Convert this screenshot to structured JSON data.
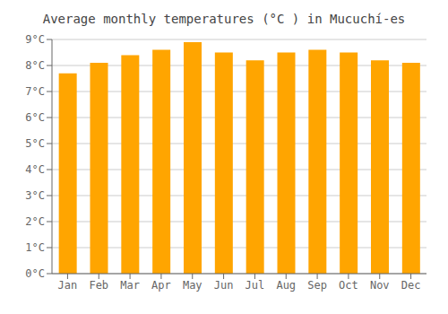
{
  "chart_data": {
    "type": "bar",
    "title": "Average monthly temperatures (°C ) in Mucuchí-es",
    "categories": [
      "Jan",
      "Feb",
      "Mar",
      "Apr",
      "May",
      "Jun",
      "Jul",
      "Aug",
      "Sep",
      "Oct",
      "Nov",
      "Dec"
    ],
    "values": [
      7.7,
      8.1,
      8.4,
      8.6,
      8.9,
      8.5,
      8.2,
      8.5,
      8.6,
      8.5,
      8.2,
      8.1
    ],
    "color": "#FFA500",
    "ylim": [
      0,
      9
    ],
    "yticks": [
      {
        "value": 0,
        "label": "0°C"
      },
      {
        "value": 1,
        "label": "1°C"
      },
      {
        "value": 2,
        "label": "2°C"
      },
      {
        "value": 3,
        "label": "3°C"
      },
      {
        "value": 4,
        "label": "4°C"
      },
      {
        "value": 5,
        "label": "5°C"
      },
      {
        "value": 6,
        "label": "6°C"
      },
      {
        "value": 7,
        "label": "7°C"
      },
      {
        "value": 8,
        "label": "8°C"
      },
      {
        "value": 9,
        "label": "9°C"
      }
    ],
    "grid": true
  }
}
